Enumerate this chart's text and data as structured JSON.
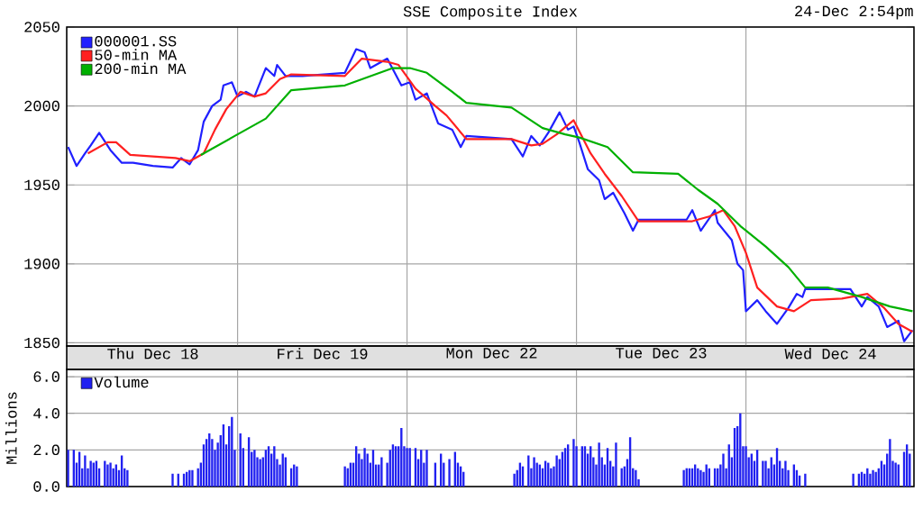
{
  "chart_data": [
    {
      "type": "line",
      "title": "SSE Composite Index",
      "subtitle": "24-Dec 2:54pm",
      "categories": [
        null,
        null,
        null,
        null,
        null,
        null,
        null,
        null,
        null,
        null,
        null,
        null,
        null,
        null,
        null,
        null,
        null,
        null,
        null,
        null,
        null,
        null,
        null,
        null,
        null,
        null,
        null,
        null,
        null,
        null,
        "Thu Dec 18",
        null,
        null,
        null,
        null,
        null,
        null,
        null,
        null,
        null,
        null,
        null,
        null,
        null,
        null,
        null,
        null,
        null,
        null,
        null,
        null,
        null,
        null,
        null,
        null,
        null,
        null,
        null,
        null,
        null,
        null,
        null,
        null,
        null,
        null,
        null,
        null,
        null,
        null,
        null,
        null,
        null,
        null,
        null,
        null,
        null,
        null,
        null,
        null,
        null,
        null,
        null,
        null,
        null,
        null,
        null,
        null,
        null,
        null,
        null,
        "Fri Dec 19",
        null,
        null,
        null,
        null,
        null,
        null,
        null,
        null,
        null,
        null,
        null,
        null,
        null,
        null,
        null,
        null,
        null,
        null,
        null,
        null,
        null,
        null,
        null,
        null,
        null,
        null,
        null,
        null,
        null,
        null,
        null,
        null,
        null,
        null,
        null,
        null,
        null,
        null,
        null,
        null,
        null,
        null,
        null,
        null,
        null,
        null,
        null,
        null,
        null,
        null,
        null,
        null,
        null,
        null,
        null,
        null,
        null,
        null,
        null,
        "Mon Dec 22",
        null,
        null,
        null,
        null,
        null,
        null,
        null,
        null,
        null,
        null,
        null,
        null,
        null,
        null,
        null,
        null,
        null,
        null,
        null,
        null,
        null,
        null,
        null,
        null,
        null,
        null,
        null,
        null,
        null,
        null,
        null,
        null,
        null,
        null,
        null,
        null,
        null,
        null,
        null,
        null,
        null,
        null,
        null,
        null,
        null,
        null,
        null,
        null,
        null,
        null,
        null,
        null,
        null,
        null,
        null,
        null,
        null,
        null,
        null,
        "Tue Dec 23",
        null,
        null,
        null,
        null,
        null,
        null,
        null,
        null,
        null,
        null,
        null,
        null,
        null,
        null,
        null,
        null,
        null,
        null,
        null,
        null,
        null,
        null,
        null,
        null,
        null,
        null,
        null,
        null,
        null,
        null,
        null,
        null,
        null,
        null,
        null,
        null,
        null,
        null,
        null,
        null,
        null,
        null,
        null,
        null,
        null,
        null,
        null,
        null,
        null,
        null,
        null,
        null,
        null,
        null,
        null,
        null,
        null,
        null,
        null,
        "Wed Dec 24",
        null,
        null,
        null,
        null,
        null,
        null,
        null,
        null,
        null,
        null,
        null,
        null,
        null,
        null,
        null,
        null,
        null,
        null,
        null,
        null,
        null,
        null,
        null,
        null,
        null,
        null,
        null,
        null,
        null
      ],
      "ylim": [
        1848,
        2050
      ],
      "yticks": [
        1850,
        1900,
        1950,
        2000,
        2050
      ],
      "grid": true,
      "legend": "top left",
      "series": [
        {
          "name": "000001.SS",
          "color": "#2020ff",
          "values": [
            1974,
            null,
            null,
            1962,
            null,
            null,
            1970,
            null,
            1975,
            null,
            null,
            1983,
            null,
            null,
            null,
            1972,
            null,
            null,
            null,
            1964,
            null,
            null,
            null,
            1964,
            null,
            null,
            null,
            null,
            null,
            null,
            1962,
            null,
            null,
            null,
            null,
            null,
            null,
            1961,
            null,
            null,
            1967,
            null,
            null,
            1963,
            null,
            null,
            1972,
            null,
            1990,
            null,
            null,
            2000,
            null,
            null,
            2004,
            2013,
            null,
            null,
            2015,
            null,
            2006,
            null,
            null,
            2009,
            null,
            null,
            2006,
            null,
            null,
            null,
            2024,
            null,
            null,
            2019,
            2026,
            null,
            null,
            2019,
            null,
            null,
            null,
            null,
            null,
            2019,
            null,
            null,
            null,
            null,
            null,
            null,
            null,
            null,
            null,
            null,
            null,
            null,
            null,
            null,
            2021,
            null,
            null,
            null,
            2036,
            null,
            null,
            2034,
            null,
            2024,
            null,
            null,
            null,
            null,
            null,
            2030,
            null,
            null,
            null,
            null,
            2013,
            null,
            null,
            2015,
            null,
            2004,
            null,
            null,
            null,
            2008,
            null,
            null,
            null,
            1989,
            null,
            null,
            null,
            null,
            1985,
            null,
            null,
            1974,
            null,
            1981,
            null,
            null,
            null,
            null,
            null,
            null,
            null,
            null,
            null,
            null,
            null,
            null,
            null,
            null,
            null,
            1979,
            null,
            null,
            null,
            1968,
            null,
            null,
            1981,
            null,
            null,
            1975,
            null,
            null,
            1983,
            null,
            null,
            null,
            1996,
            null,
            null,
            1985,
            null,
            1987,
            null,
            1977,
            null,
            null,
            1960,
            null,
            null,
            null,
            1953,
            null,
            1941,
            null,
            null,
            1945,
            null,
            null,
            null,
            1932,
            null,
            null,
            1921,
            null,
            1928,
            null,
            null,
            null,
            null,
            null,
            null,
            null,
            null,
            null,
            null,
            null,
            null,
            null,
            null,
            null,
            null,
            1928,
            null,
            1934,
            null,
            null,
            1921,
            null,
            null,
            null,
            null,
            1934,
            1926,
            null,
            null,
            null,
            null,
            1915,
            null,
            1900,
            null,
            1896,
            1870,
            null,
            null,
            null,
            1877,
            null,
            null,
            1870,
            null,
            null,
            null,
            1862,
            null,
            null,
            null,
            1872,
            null,
            null,
            1881,
            null,
            1879,
            1884,
            null,
            null,
            null,
            null,
            null,
            null,
            null,
            null,
            null,
            null,
            null,
            null,
            null,
            null,
            null,
            1884,
            null,
            null,
            null,
            1873,
            null,
            1879,
            null,
            null,
            null,
            1873,
            null,
            null,
            1860,
            null,
            null,
            null,
            1864,
            null,
            1851,
            null,
            null,
            1858
          ]
        },
        {
          "name": "50-min MA",
          "color": "#ff2020",
          "values": [
            null,
            null,
            null,
            null,
            null,
            null,
            null,
            1970,
            null,
            null,
            null,
            null,
            null,
            null,
            1977,
            null,
            null,
            1977,
            null,
            null,
            null,
            null,
            1969,
            null,
            null,
            null,
            null,
            null,
            null,
            null,
            null,
            null,
            null,
            null,
            null,
            null,
            null,
            null,
            1967,
            null,
            null,
            null,
            null,
            1965,
            null,
            null,
            null,
            null,
            1970,
            null,
            null,
            null,
            1985,
            null,
            null,
            null,
            1998,
            null,
            null,
            null,
            null,
            2009,
            null,
            null,
            null,
            null,
            2006,
            null,
            null,
            null,
            2008,
            null,
            null,
            null,
            null,
            2017,
            null,
            null,
            null,
            2020,
            null,
            null,
            null,
            null,
            null,
            null,
            null,
            null,
            null,
            null,
            null,
            null,
            null,
            null,
            null,
            null,
            null,
            null,
            2019,
            null,
            null,
            null,
            null,
            null,
            2030,
            null,
            null,
            null,
            null,
            null,
            null,
            null,
            null,
            2028,
            null,
            null,
            null,
            2026,
            null,
            null,
            null,
            null,
            null,
            2011,
            null,
            null,
            null,
            null,
            null,
            null,
            2000,
            null,
            null,
            null,
            1994,
            null,
            null,
            null,
            null,
            null,
            null,
            1979,
            null,
            null,
            null,
            null,
            null,
            null,
            null,
            null,
            null,
            null,
            null,
            null,
            null,
            null,
            null,
            1979,
            null,
            null,
            null,
            null,
            null,
            null,
            1975,
            null,
            null,
            null,
            1976,
            null,
            null,
            null,
            null,
            1982,
            null,
            null,
            null,
            null,
            null,
            1991,
            null,
            null,
            null,
            null,
            null,
            1970,
            null,
            null,
            null,
            null,
            1957,
            null,
            null,
            null,
            null,
            null,
            1943,
            null,
            null,
            null,
            null,
            null,
            1927,
            null,
            null,
            null,
            null,
            null,
            null,
            null,
            null,
            null,
            null,
            null,
            null,
            null,
            null,
            null,
            null,
            null,
            null,
            1927,
            null,
            null,
            null,
            null,
            null,
            1930,
            null,
            null,
            null,
            null,
            1934,
            null,
            null,
            null,
            1924,
            null,
            null,
            null,
            1907,
            null,
            null,
            null,
            1885,
            null,
            null,
            null,
            null,
            null,
            null,
            1873,
            null,
            null,
            null,
            null,
            null,
            1870,
            null,
            null,
            null,
            null,
            null,
            1877,
            null,
            null,
            null,
            null,
            null,
            null,
            null,
            null,
            null,
            null,
            1878,
            null,
            null,
            null,
            null,
            null,
            null,
            null,
            null,
            1881,
            null,
            null,
            null,
            null,
            null,
            1872,
            null,
            null,
            null,
            null,
            1862,
            null,
            null,
            null,
            null,
            1857
          ]
        },
        {
          "name": "200-min MA",
          "color": "#00b000",
          "values": [
            null,
            null,
            null,
            null,
            null,
            null,
            null,
            null,
            null,
            null,
            null,
            null,
            null,
            null,
            null,
            null,
            null,
            null,
            null,
            null,
            null,
            null,
            null,
            null,
            null,
            null,
            null,
            null,
            null,
            null,
            null,
            null,
            null,
            null,
            null,
            null,
            null,
            null,
            null,
            null,
            null,
            null,
            null,
            null,
            null,
            null,
            null,
            1969,
            null,
            null,
            null,
            null,
            null,
            null,
            null,
            null,
            null,
            null,
            null,
            1981,
            null,
            null,
            null,
            null,
            null,
            null,
            null,
            null,
            null,
            null,
            1992,
            null,
            null,
            null,
            null,
            null,
            null,
            null,
            null,
            2010,
            null,
            null,
            null,
            null,
            null,
            null,
            null,
            null,
            null,
            null,
            null,
            null,
            null,
            null,
            null,
            null,
            null,
            null,
            2013,
            null,
            null,
            null,
            null,
            null,
            null,
            null,
            null,
            null,
            null,
            null,
            null,
            null,
            null,
            null,
            null,
            2024,
            null,
            null,
            null,
            null,
            null,
            2024,
            null,
            null,
            null,
            null,
            null,
            2021,
            null,
            null,
            null,
            null,
            null,
            null,
            null,
            null,
            2009,
            null,
            null,
            null,
            null,
            2002,
            null,
            null,
            null,
            null,
            null,
            null,
            null,
            null,
            null,
            null,
            null,
            null,
            null,
            null,
            null,
            1999,
            null,
            null,
            null,
            null,
            null,
            null,
            null,
            null,
            null,
            null,
            1986,
            null,
            null,
            null,
            null,
            null,
            null,
            null,
            1982,
            null,
            null,
            null,
            null,
            1980,
            null,
            null,
            null,
            null,
            null,
            null,
            null,
            null,
            null,
            1974,
            null,
            null,
            null,
            null,
            null,
            null,
            null,
            null,
            1958,
            null,
            null,
            null,
            null,
            null,
            null,
            null,
            null,
            null,
            null,
            null,
            null,
            null,
            null,
            null,
            1957,
            null,
            null,
            null,
            null,
            null,
            null,
            1947,
            null,
            null,
            null,
            null,
            null,
            null,
            1938,
            null,
            null,
            null,
            null,
            null,
            null,
            null,
            1924,
            null,
            null,
            null,
            null,
            null,
            null,
            null,
            null,
            1911,
            null,
            null,
            null,
            null,
            null,
            null,
            null,
            1898,
            null,
            null,
            null,
            null,
            null,
            1885,
            null,
            null,
            null,
            null,
            null,
            null,
            null,
            1885,
            null,
            null,
            null,
            null,
            null,
            null,
            null,
            null,
            null,
            null,
            null,
            1879,
            null,
            null,
            null,
            null,
            null,
            null,
            null,
            null,
            null,
            1873,
            null,
            null,
            null,
            null,
            null,
            null,
            null,
            1870
          ]
        }
      ]
    },
    {
      "type": "bar",
      "ylabel": "Millions",
      "categories": [
        null,
        null,
        null,
        null,
        null,
        null,
        null,
        null,
        null,
        null,
        null,
        null,
        null,
        null,
        null,
        null,
        null,
        null,
        null,
        null,
        null,
        null,
        null,
        null,
        null,
        null,
        null,
        null,
        null,
        null,
        null,
        null,
        null,
        null,
        null,
        null,
        null,
        null,
        null,
        null,
        null,
        null,
        null,
        null,
        null,
        null,
        null,
        null,
        null,
        null,
        null,
        null,
        null,
        null,
        null,
        null,
        null,
        null,
        null,
        null,
        null,
        null,
        null,
        null,
        null,
        null,
        null,
        null,
        null,
        null,
        null,
        null,
        null,
        null,
        null,
        null,
        null,
        null,
        null,
        null,
        null,
        null,
        null,
        null,
        null,
        null,
        null,
        null,
        null,
        null,
        null,
        null,
        null,
        null,
        null,
        null,
        null,
        null,
        null,
        null,
        null,
        null,
        null,
        null,
        null,
        null,
        null,
        null,
        null,
        null,
        null,
        null,
        null,
        null,
        null,
        null,
        null,
        null,
        null,
        null,
        null,
        null,
        null,
        null,
        null,
        null,
        null,
        null,
        null,
        null,
        null,
        null,
        null,
        null,
        null,
        null,
        null,
        null,
        null,
        null,
        null,
        null,
        null,
        null,
        null,
        null,
        null,
        null,
        null,
        null,
        null,
        null,
        null,
        null,
        null,
        null,
        null,
        null,
        null,
        null,
        null,
        null,
        null,
        null,
        null,
        null,
        null,
        null,
        null,
        null,
        null,
        null,
        null,
        null,
        null,
        null,
        null,
        null,
        null,
        null,
        null,
        null,
        null,
        null,
        null,
        null,
        null,
        null,
        null,
        null,
        null,
        null,
        null,
        null,
        null,
        null,
        null,
        null,
        null,
        null,
        null,
        null,
        null,
        null,
        null,
        null,
        null,
        null,
        null,
        null,
        null,
        null,
        null,
        null,
        null,
        null,
        null,
        null,
        null,
        null,
        null,
        null,
        null,
        null,
        null,
        null,
        null,
        null,
        null,
        null,
        null,
        null,
        null,
        null,
        null,
        null,
        null,
        null,
        null,
        null,
        null,
        null,
        null,
        null,
        null,
        null,
        null,
        null,
        null,
        null,
        null,
        null,
        null,
        null,
        null,
        null,
        null,
        null,
        null,
        null,
        null,
        null,
        null,
        null,
        null,
        null,
        null,
        null,
        null,
        null,
        null,
        null,
        null,
        null,
        null,
        null,
        null,
        null,
        null,
        null,
        null,
        null,
        null,
        null,
        null,
        null,
        null,
        null,
        null,
        null,
        null,
        null,
        null,
        null,
        null,
        null,
        null,
        null,
        null,
        null
      ],
      "ylim": [
        0,
        6.4
      ],
      "yticks": [
        {
          "value": 0,
          "label": "0.0"
        },
        {
          "value": 2,
          "label": "2.0"
        },
        {
          "value": 4,
          "label": "4.0"
        },
        {
          "value": 6,
          "label": "6.0"
        }
      ],
      "grid": true,
      "legend": "top left",
      "tick_labels": "y",
      "series": [
        {
          "name": "Volume",
          "color": "#2020f0",
          "values": [
            2.0,
            null,
            2.0,
            1.3,
            1.9,
            1.0,
            1.7,
            1.0,
            1.4,
            1.3,
            1.4,
            1.0,
            null,
            1.4,
            1.2,
            1.3,
            1.0,
            1.2,
            0.9,
            1.7,
            1.0,
            0.9,
            null,
            null,
            null,
            null,
            null,
            null,
            null,
            null,
            null,
            null,
            null,
            null,
            null,
            null,
            null,
            0.7,
            null,
            0.7,
            null,
            0.7,
            0.8,
            0.9,
            0.9,
            null,
            1.0,
            1.3,
            2.3,
            2.6,
            2.9,
            2.6,
            2.0,
            2.4,
            2.8,
            3.4,
            2.3,
            3.3,
            3.8,
            2.0,
            null,
            2.9,
            2.1,
            null,
            2.7,
            1.9,
            2.0,
            1.6,
            1.5,
            1.6,
            2.0,
            2.2,
            1.8,
            2.2,
            1.5,
            1.2,
            1.8,
            1.6,
            null,
            1.0,
            1.2,
            1.1,
            null,
            null,
            null,
            null,
            null,
            null,
            null,
            null,
            null,
            null,
            null,
            null,
            null,
            null,
            null,
            null,
            1.1,
            1.0,
            1.3,
            1.3,
            2.2,
            1.8,
            1.5,
            2.1,
            1.8,
            1.3,
            2.0,
            1.2,
            1.2,
            1.6,
            null,
            1.3,
            2.0,
            2.3,
            2.2,
            2.2,
            3.2,
            2.2,
            2.1,
            2.1,
            null,
            2.1,
            1.5,
            2.0,
            1.3,
            2.0,
            null,
            null,
            1.3,
            null,
            1.8,
            1.3,
            null,
            1.5,
            null,
            1.9,
            1.3,
            1.1,
            0.8,
            null,
            null,
            null,
            null,
            null,
            null,
            null,
            null,
            null,
            null,
            null,
            null,
            null,
            null,
            null,
            null,
            null,
            0.7,
            0.9,
            1.3,
            1.1,
            null,
            1.7,
            1.0,
            1.6,
            1.3,
            1.2,
            1.0,
            1.4,
            1.3,
            1.0,
            1.1,
            1.7,
            1.5,
            1.9,
            2.1,
            2.3,
            null,
            2.6,
            2.2,
            null,
            2.2,
            2.2,
            1.8,
            2.2,
            1.6,
            1.2,
            2.4,
            1.6,
            1.2,
            2.1,
            1.4,
            1.1,
            2.4,
            null,
            1.0,
            1.1,
            1.5,
            2.7,
            1.0,
            0.9,
            0.4,
            null,
            null,
            null,
            null,
            null,
            null,
            null,
            null,
            null,
            null,
            null,
            null,
            null,
            null,
            null,
            0.9,
            1.0,
            1.0,
            1.0,
            1.2,
            1.0,
            0.9,
            0.8,
            1.2,
            1.0,
            null,
            1.0,
            1.0,
            1.2,
            1.8,
            1.0,
            2.3,
            1.6,
            3.2,
            3.3,
            4.0,
            2.2,
            2.2,
            1.6,
            1.8,
            1.4,
            2.0,
            null,
            1.4,
            1.4,
            1.0,
            1.6,
            1.2,
            2.1,
            1.4,
            1.0,
            1.4,
            0.9,
            null,
            1.2,
            0.9,
            0.6,
            null,
            0.7,
            null,
            null,
            null,
            null,
            null,
            null,
            null,
            null,
            null,
            null,
            null,
            null,
            null,
            null,
            null,
            null,
            0.7,
            null,
            0.7,
            0.8,
            0.7,
            1.0,
            0.7,
            0.9,
            0.8,
            1.0,
            1.4,
            1.2,
            1.8,
            2.6,
            1.4,
            1.3,
            1.2,
            null,
            1.9,
            2.3,
            1.8,
            null
          ]
        }
      ]
    }
  ]
}
